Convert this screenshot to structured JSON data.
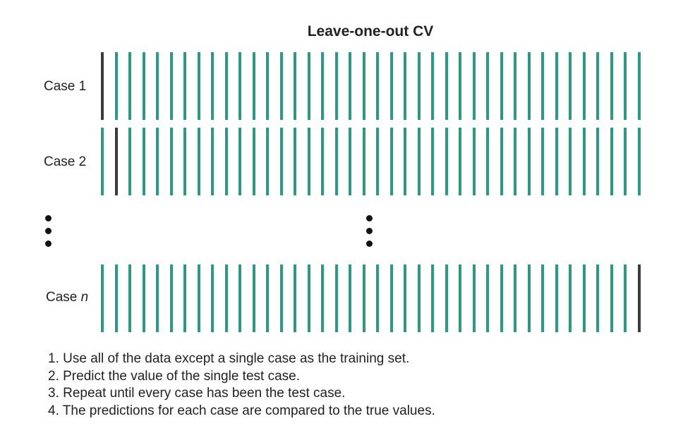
{
  "title": "Leave-one-out CV",
  "cases": [
    {
      "label": "Case 1",
      "label_suffix": "",
      "test_index": 0
    },
    {
      "label": "Case 2",
      "label_suffix": "",
      "test_index": 1
    },
    {
      "label": "Case ",
      "label_suffix": "n",
      "test_index": 39
    }
  ],
  "bar_count": 40,
  "colors": {
    "train": "#2a9a86",
    "test": "#3c3c3c"
  },
  "steps": [
    "1. Use all of the data except a single case as the training set.",
    "2. Predict the value of the single test case.",
    "3. Repeat until every case has been the test case.",
    "4. The predictions for each case are compared to the true values."
  ]
}
